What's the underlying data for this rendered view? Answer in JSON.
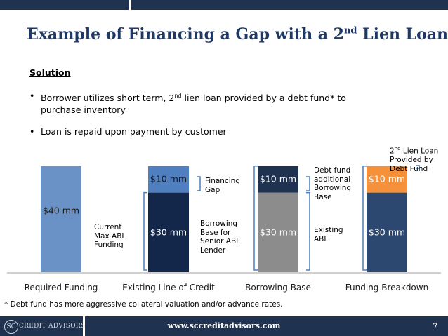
{
  "slide": {
    "title": "Example of Financing a Gap with a 2",
    "title_sup": "nd",
    "title_end": " Lien Loan",
    "solution_heading": "Solution",
    "bullet1_a": "Borrower utilizes short term, 2",
    "bullet1_sup": "nd",
    "bullet1_b": " lien loan provided by a debt fund* to",
    "bullet1_c": "purchase inventory",
    "bullet2": "Loan is repaid upon payment by customer",
    "bullet_glyph": "•",
    "footnote": "* Debt fund has more aggressive collateral valuation and/or advance rates.",
    "footer_logo_mark": "SC",
    "footer_logo_text": "CREDIT ADVISORS",
    "footer_url": "www.sccreditadvisors.com",
    "page_number": "7"
  },
  "annotations": {
    "current_max_abl": [
      "Current",
      "Max ABL",
      "Funding"
    ],
    "financing_gap": [
      "Financing",
      "Gap"
    ],
    "borrowing_base_senior": [
      "Borrowing",
      "Base for",
      "Senior ABL",
      "Lender"
    ],
    "debt_fund_additional": [
      "Debt fund",
      "additional",
      "Borrowing",
      "Base"
    ],
    "existing_abl": [
      "Existing",
      "ABL"
    ],
    "second_lien_a": "2",
    "second_lien_sup": "nd",
    "second_lien_b": " Lien Loan",
    "second_lien_c": "Provided by",
    "second_lien_d": "Debt Fund"
  },
  "colors": {
    "title": "#1f3864",
    "required": "#6b92c6",
    "existing_dark": "#13274a",
    "existing_light": "#4f7fbf",
    "bb_top": "#1f3350",
    "bb_bottom": "#8c8c8c",
    "fb_top": "#f4913a",
    "fb_bottom": "#2c4770",
    "bracket": "#4d7cbb",
    "footer": "#1f3350"
  },
  "chart_data": {
    "type": "bar",
    "stacked": true,
    "categories": [
      "Required Funding",
      "Existing Line of Credit",
      "Borrowing Base",
      "Funding Breakdown"
    ],
    "series": [
      {
        "values": [
          40,
          30,
          30,
          30
        ],
        "labels": [
          "$40 mm",
          "$30 mm",
          "$30 mm",
          "$30 mm"
        ]
      },
      {
        "values": [
          0,
          10,
          10,
          10
        ],
        "labels": [
          "",
          "$10 mm",
          "$10 mm",
          "$10 mm"
        ]
      }
    ],
    "units": "$ mm",
    "ylim": [
      0,
      40
    ],
    "grid": false,
    "legend": "none"
  }
}
